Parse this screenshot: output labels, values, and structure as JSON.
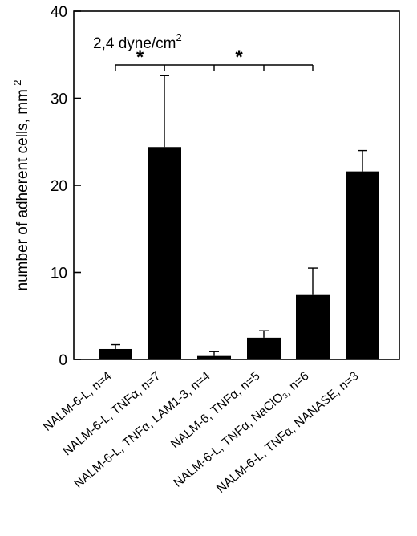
{
  "chart_data": {
    "type": "bar",
    "ylabel": "number of adherent cells, mm",
    "ylabel_superscript": "-2",
    "ylim": [
      0,
      40
    ],
    "yticks": [
      0,
      10,
      20,
      30,
      40
    ],
    "categories": [
      "NALM-6-L, n=4",
      "NALM-6-L, TNFα, n=7",
      "NALM-6-L, TNFα, LAM1-3, n=4",
      "NALM-6, TNFα, n=5",
      "NALM-6-L, TNFα, NaClO₃, n=6",
      "NALM-6-L, TNFα, NANASE, n=3"
    ],
    "values": [
      1.2,
      24.4,
      0.4,
      2.5,
      7.4,
      21.6
    ],
    "errors": [
      0.5,
      8.2,
      0.5,
      0.8,
      3.1,
      2.4
    ],
    "bar_color": "#000000",
    "grid": false,
    "annotation": {
      "text": "2,4 dyne/cm",
      "superscript": "2",
      "star": "*"
    },
    "brackets": [
      {
        "from": 0,
        "to": 1,
        "star": "*"
      },
      {
        "from": 1,
        "to": 4,
        "star": "*"
      }
    ]
  }
}
